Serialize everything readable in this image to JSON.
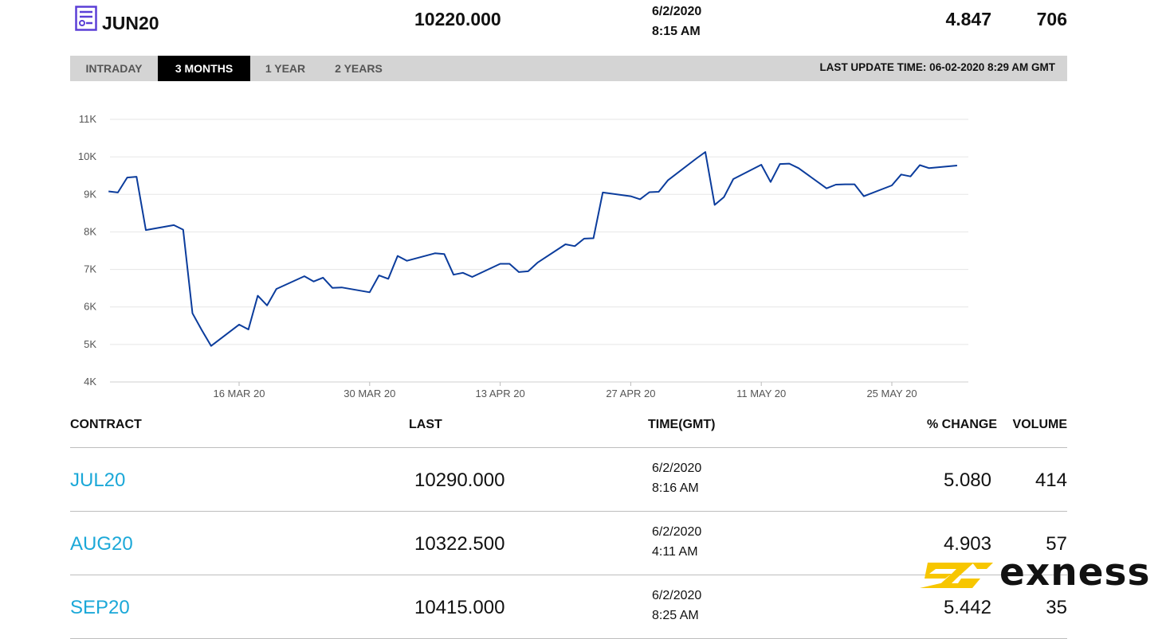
{
  "header": {
    "contract": "JUN20",
    "last": "10220.000",
    "date": "6/2/2020",
    "time": "8:15 AM",
    "change": "4.847",
    "volume": "706"
  },
  "tabs": [
    "INTRADAY",
    "3 MONTHS",
    "1 YEAR",
    "2 YEARS"
  ],
  "active_tab": "3 MONTHS",
  "last_update": "LAST UPDATE TIME: 06-02-2020 8:29 AM GMT",
  "chart_data": {
    "type": "line",
    "title": "",
    "xlabel": "",
    "ylabel": "",
    "ylim": [
      4000,
      11000
    ],
    "y_ticks": [
      "4K",
      "5K",
      "6K",
      "7K",
      "8K",
      "9K",
      "10K",
      "11K"
    ],
    "x_ticks": [
      "16 MAR 20",
      "30 MAR 20",
      "13 APR 20",
      "27 APR 20",
      "11 MAY 20",
      "25 MAY 20"
    ],
    "grid": true,
    "line_color": "#0b3c9c",
    "x": [
      "2020-03-02",
      "2020-03-03",
      "2020-03-04",
      "2020-03-05",
      "2020-03-06",
      "2020-03-09",
      "2020-03-10",
      "2020-03-11",
      "2020-03-12",
      "2020-03-13",
      "2020-03-16",
      "2020-03-17",
      "2020-03-18",
      "2020-03-19",
      "2020-03-20",
      "2020-03-23",
      "2020-03-24",
      "2020-03-25",
      "2020-03-26",
      "2020-03-27",
      "2020-03-30",
      "2020-03-31",
      "2020-04-01",
      "2020-04-02",
      "2020-04-03",
      "2020-04-06",
      "2020-04-07",
      "2020-04-08",
      "2020-04-09",
      "2020-04-10",
      "2020-04-13",
      "2020-04-14",
      "2020-04-15",
      "2020-04-16",
      "2020-04-17",
      "2020-04-20",
      "2020-04-21",
      "2020-04-22",
      "2020-04-23",
      "2020-04-24",
      "2020-04-27",
      "2020-04-28",
      "2020-04-29",
      "2020-04-30",
      "2020-05-01",
      "2020-05-04",
      "2020-05-05",
      "2020-05-06",
      "2020-05-07",
      "2020-05-08",
      "2020-05-11",
      "2020-05-12",
      "2020-05-13",
      "2020-05-14",
      "2020-05-15",
      "2020-05-18",
      "2020-05-19",
      "2020-05-20",
      "2020-05-21",
      "2020-05-22",
      "2020-05-25",
      "2020-05-26",
      "2020-05-27",
      "2020-05-28",
      "2020-05-29",
      "2020-06-01"
    ],
    "values": [
      9080,
      9050,
      9450,
      9470,
      8050,
      8180,
      8060,
      5830,
      5380,
      4960,
      5530,
      5400,
      6300,
      6040,
      6480,
      6820,
      6680,
      6780,
      6510,
      6520,
      6390,
      6840,
      6750,
      7360,
      7230,
      7430,
      7410,
      6860,
      6910,
      6800,
      7150,
      7150,
      6930,
      6950,
      7180,
      7670,
      7620,
      7820,
      7830,
      9050,
      8950,
      8870,
      9060,
      9070,
      9380,
      9950,
      10130,
      8720,
      8930,
      9410,
      9790,
      9330,
      9810,
      9820,
      9700,
      9160,
      9260,
      9270,
      9270,
      8950,
      9240,
      9530,
      9480,
      9780,
      9700,
      9770
    ]
  },
  "table": {
    "headers": {
      "contract": "CONTRACT",
      "last": "LAST",
      "time": "TIME(GMT)",
      "change": "% CHANGE",
      "volume": "VOLUME"
    },
    "rows": [
      {
        "contract": "JUL20",
        "last": "10290.000",
        "date": "6/2/2020",
        "time": "8:16 AM",
        "change": "5.080",
        "volume": "414"
      },
      {
        "contract": "AUG20",
        "last": "10322.500",
        "date": "6/2/2020",
        "time": "4:11 AM",
        "change": "4.903",
        "volume": "57"
      },
      {
        "contract": "SEP20",
        "last": "10415.000",
        "date": "6/2/2020",
        "time": "8:25 AM",
        "change": "5.442",
        "volume": "35"
      }
    ]
  },
  "brand": {
    "name": "exness",
    "color": "#f7c600"
  }
}
